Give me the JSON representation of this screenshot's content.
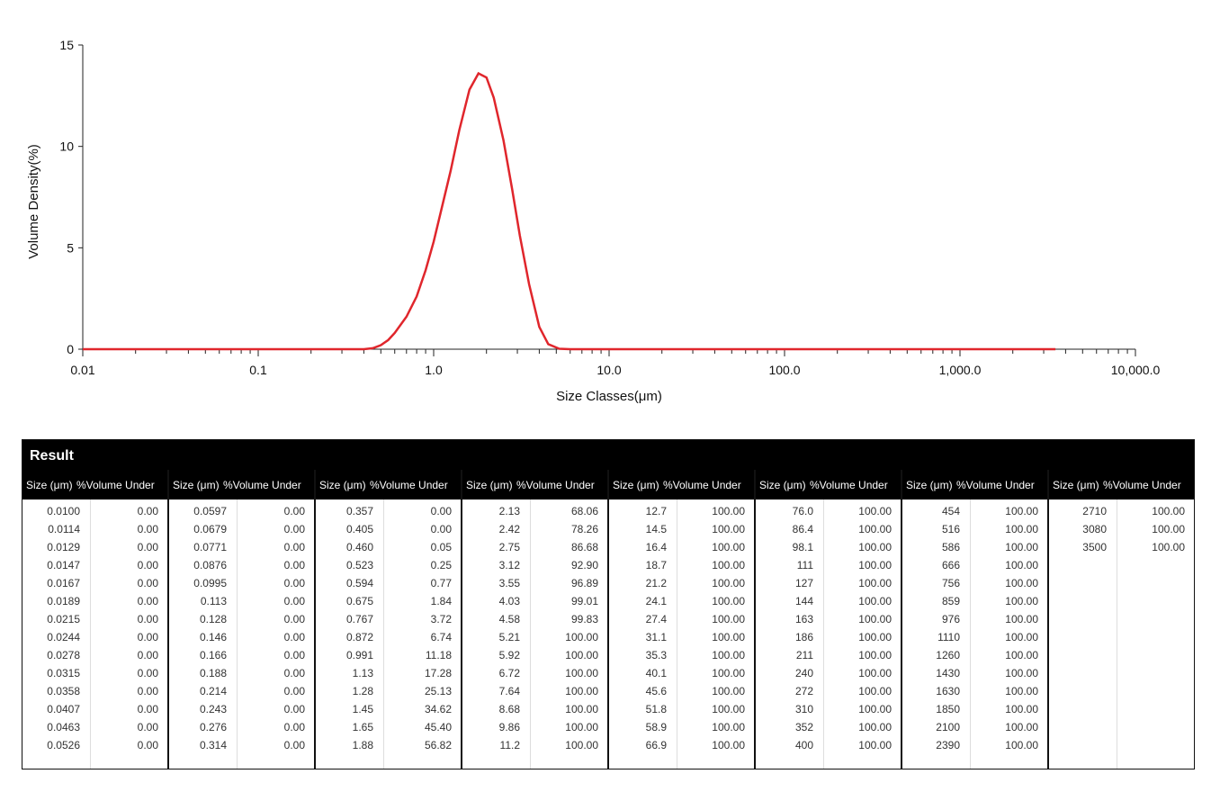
{
  "chart_data": {
    "type": "line",
    "xscale": "log",
    "xlim": [
      0.01,
      10000
    ],
    "ylim": [
      0,
      15
    ],
    "xlabel": "Size Classes(μm)",
    "ylabel": "Volume Density(%)",
    "x_tick_labels": [
      "0.01",
      "0.1",
      "1.0",
      "10.0",
      "100.0",
      "1,000.0",
      "10,000.0"
    ],
    "x_tick_values": [
      0.01,
      0.1,
      1,
      10,
      100,
      1000,
      10000
    ],
    "y_ticks": [
      0,
      5,
      10,
      15
    ],
    "line_color": "#e0262c",
    "series": [
      {
        "x": [
          0.01,
          0.1,
          0.2,
          0.3,
          0.4,
          0.45,
          0.5,
          0.55,
          0.6,
          0.7,
          0.8,
          0.9,
          1.0,
          1.1,
          1.25,
          1.4,
          1.6,
          1.8,
          2.0,
          2.2,
          2.5,
          2.8,
          3.1,
          3.5,
          4.0,
          4.5,
          5.2,
          6.0,
          10,
          100,
          1000,
          3500
        ],
        "y": [
          0,
          0,
          0,
          0,
          0,
          0.05,
          0.2,
          0.45,
          0.8,
          1.6,
          2.6,
          3.9,
          5.3,
          6.8,
          8.8,
          10.8,
          12.8,
          13.6,
          13.4,
          12.4,
          10.3,
          7.9,
          5.6,
          3.2,
          1.1,
          0.25,
          0.02,
          0,
          0,
          0,
          0,
          0
        ]
      }
    ]
  },
  "result": {
    "title": "Result",
    "size_header": "Size (μm)",
    "volume_header": "%Volume Under",
    "columns": [
      {
        "rows": [
          [
            "0.0100",
            "0.00"
          ],
          [
            "0.0114",
            "0.00"
          ],
          [
            "0.0129",
            "0.00"
          ],
          [
            "0.0147",
            "0.00"
          ],
          [
            "0.0167",
            "0.00"
          ],
          [
            "0.0189",
            "0.00"
          ],
          [
            "0.0215",
            "0.00"
          ],
          [
            "0.0244",
            "0.00"
          ],
          [
            "0.0278",
            "0.00"
          ],
          [
            "0.0315",
            "0.00"
          ],
          [
            "0.0358",
            "0.00"
          ],
          [
            "0.0407",
            "0.00"
          ],
          [
            "0.0463",
            "0.00"
          ],
          [
            "0.0526",
            "0.00"
          ]
        ]
      },
      {
        "rows": [
          [
            "0.0597",
            "0.00"
          ],
          [
            "0.0679",
            "0.00"
          ],
          [
            "0.0771",
            "0.00"
          ],
          [
            "0.0876",
            "0.00"
          ],
          [
            "0.0995",
            "0.00"
          ],
          [
            "0.113",
            "0.00"
          ],
          [
            "0.128",
            "0.00"
          ],
          [
            "0.146",
            "0.00"
          ],
          [
            "0.166",
            "0.00"
          ],
          [
            "0.188",
            "0.00"
          ],
          [
            "0.214",
            "0.00"
          ],
          [
            "0.243",
            "0.00"
          ],
          [
            "0.276",
            "0.00"
          ],
          [
            "0.314",
            "0.00"
          ]
        ]
      },
      {
        "rows": [
          [
            "0.357",
            "0.00"
          ],
          [
            "0.405",
            "0.00"
          ],
          [
            "0.460",
            "0.05"
          ],
          [
            "0.523",
            "0.25"
          ],
          [
            "0.594",
            "0.77"
          ],
          [
            "0.675",
            "1.84"
          ],
          [
            "0.767",
            "3.72"
          ],
          [
            "0.872",
            "6.74"
          ],
          [
            "0.991",
            "11.18"
          ],
          [
            "1.13",
            "17.28"
          ],
          [
            "1.28",
            "25.13"
          ],
          [
            "1.45",
            "34.62"
          ],
          [
            "1.65",
            "45.40"
          ],
          [
            "1.88",
            "56.82"
          ]
        ]
      },
      {
        "rows": [
          [
            "2.13",
            "68.06"
          ],
          [
            "2.42",
            "78.26"
          ],
          [
            "2.75",
            "86.68"
          ],
          [
            "3.12",
            "92.90"
          ],
          [
            "3.55",
            "96.89"
          ],
          [
            "4.03",
            "99.01"
          ],
          [
            "4.58",
            "99.83"
          ],
          [
            "5.21",
            "100.00"
          ],
          [
            "5.92",
            "100.00"
          ],
          [
            "6.72",
            "100.00"
          ],
          [
            "7.64",
            "100.00"
          ],
          [
            "8.68",
            "100.00"
          ],
          [
            "9.86",
            "100.00"
          ],
          [
            "11.2",
            "100.00"
          ]
        ]
      },
      {
        "rows": [
          [
            "12.7",
            "100.00"
          ],
          [
            "14.5",
            "100.00"
          ],
          [
            "16.4",
            "100.00"
          ],
          [
            "18.7",
            "100.00"
          ],
          [
            "21.2",
            "100.00"
          ],
          [
            "24.1",
            "100.00"
          ],
          [
            "27.4",
            "100.00"
          ],
          [
            "31.1",
            "100.00"
          ],
          [
            "35.3",
            "100.00"
          ],
          [
            "40.1",
            "100.00"
          ],
          [
            "45.6",
            "100.00"
          ],
          [
            "51.8",
            "100.00"
          ],
          [
            "58.9",
            "100.00"
          ],
          [
            "66.9",
            "100.00"
          ]
        ]
      },
      {
        "rows": [
          [
            "76.0",
            "100.00"
          ],
          [
            "86.4",
            "100.00"
          ],
          [
            "98.1",
            "100.00"
          ],
          [
            "111",
            "100.00"
          ],
          [
            "127",
            "100.00"
          ],
          [
            "144",
            "100.00"
          ],
          [
            "163",
            "100.00"
          ],
          [
            "186",
            "100.00"
          ],
          [
            "211",
            "100.00"
          ],
          [
            "240",
            "100.00"
          ],
          [
            "272",
            "100.00"
          ],
          [
            "310",
            "100.00"
          ],
          [
            "352",
            "100.00"
          ],
          [
            "400",
            "100.00"
          ]
        ]
      },
      {
        "rows": [
          [
            "454",
            "100.00"
          ],
          [
            "516",
            "100.00"
          ],
          [
            "586",
            "100.00"
          ],
          [
            "666",
            "100.00"
          ],
          [
            "756",
            "100.00"
          ],
          [
            "859",
            "100.00"
          ],
          [
            "976",
            "100.00"
          ],
          [
            "1110",
            "100.00"
          ],
          [
            "1260",
            "100.00"
          ],
          [
            "1430",
            "100.00"
          ],
          [
            "1630",
            "100.00"
          ],
          [
            "1850",
            "100.00"
          ],
          [
            "2100",
            "100.00"
          ],
          [
            "2390",
            "100.00"
          ]
        ]
      },
      {
        "rows": [
          [
            "2710",
            "100.00"
          ],
          [
            "3080",
            "100.00"
          ],
          [
            "3500",
            "100.00"
          ]
        ]
      }
    ]
  }
}
